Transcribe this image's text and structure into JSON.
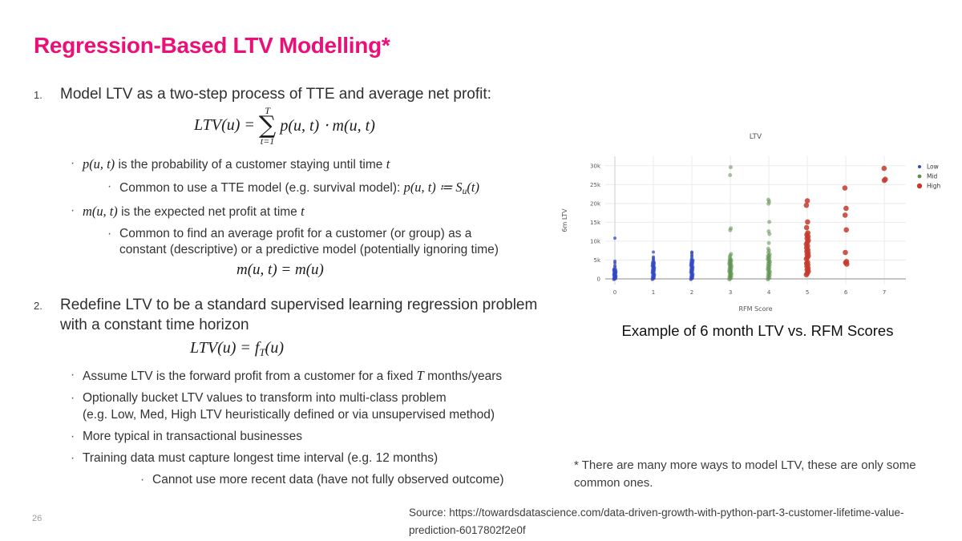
{
  "slide": {
    "title": "Regression-Based LTV Modelling*",
    "title_color": "#EA1077",
    "page_number": "26",
    "caption": "Example of 6 month LTV vs. RFM Scores",
    "footnote": "* There are many more ways to model LTV, these are only some common ones.",
    "source": "Source: https://towardsdatascience.com/data-driven-growth-with-python-part-3-customer-lifetime-value-prediction-6017802f2e0f"
  },
  "ui": {
    "bullet_char": "·"
  },
  "items": {
    "item1": {
      "number": "1.",
      "heading": "Model LTV as a two-step process of TTE and average net profit:",
      "formula_sum": {
        "lhs": "LTV(u) = ",
        "sigma": "∑",
        "upper": "T",
        "lower": "t=1",
        "rhs": "p(u, t) ⋅ m(u, t)"
      },
      "bullets": [
        {
          "segments": [
            {
              "s": "math",
              "t": "p(u, t)"
            },
            {
              "s": "text",
              "t": " is the probability of a customer staying until time "
            },
            {
              "s": "math",
              "t": "t"
            }
          ]
        },
        {
          "segments": [
            {
              "s": "text",
              "t": "Common to use a TTE model (e.g. survival model): "
            },
            {
              "s": "math",
              "t": "p(u, t) ≔ S"
            },
            {
              "s": "sub",
              "t": "u"
            },
            {
              "s": "math",
              "t": "(t)"
            }
          ]
        },
        {
          "segments": [
            {
              "s": "math",
              "t": "m(u, t)"
            },
            {
              "s": "text",
              "t": " is the expected net profit at time "
            },
            {
              "s": "math",
              "t": "t"
            }
          ]
        },
        {
          "segments": [
            {
              "s": "text",
              "t": "Common to find an average profit for a customer (or group) as a"
            },
            {
              "s": "br"
            },
            {
              "s": "text",
              "t": "constant (descriptive) or a predictive model (potentially ignoring time)"
            }
          ]
        }
      ],
      "formula_m": "m(u, t) = m(u)"
    },
    "item2": {
      "number": "2.",
      "heading_lines": [
        "Redefine LTV to be a standard supervised learning regression problem",
        "with a constant time horizon"
      ],
      "formula": {
        "lhs": "LTV(u) = f",
        "sub": "T",
        "rhs": "(u)"
      },
      "bullets": [
        {
          "segments": [
            {
              "s": "text",
              "t": "Assume LTV is the forward profit from a customer for a fixed "
            },
            {
              "s": "math",
              "t": "T"
            },
            {
              "s": "text",
              "t": " months/years"
            }
          ]
        },
        {
          "segments": [
            {
              "s": "text",
              "t": "Optionally bucket LTV values to transform into multi-class problem"
            },
            {
              "s": "br"
            },
            {
              "s": "text",
              "t": "(e.g. Low, Med, High LTV heuristically defined or via unsupervised method)"
            }
          ]
        },
        {
          "segments": [
            {
              "s": "text",
              "t": "More typical in transactional businesses"
            }
          ]
        },
        {
          "segments": [
            {
              "s": "text",
              "t": "Training data must capture longest time interval (e.g. 12 months)"
            }
          ]
        },
        {
          "segments": [
            {
              "s": "text",
              "t": "Cannot use more recent data (have not fully observed outcome)"
            }
          ]
        }
      ]
    }
  },
  "chart_data": {
    "type": "scatter",
    "title": "LTV",
    "xlabel": "RFM Score",
    "ylabel": "6m LTV",
    "x_ticks": [
      0,
      1,
      2,
      3,
      4,
      5,
      6,
      7
    ],
    "y_ticks": [
      0,
      5000,
      10000,
      15000,
      20000,
      25000,
      30000
    ],
    "y_tick_labels": [
      "0",
      "5k",
      "10k",
      "15k",
      "20k",
      "25k",
      "30k"
    ],
    "xlim": [
      -0.25,
      7.56
    ],
    "ylim": [
      -1500,
      32500
    ],
    "grid": true,
    "legend_position": "top-right",
    "series": [
      {
        "name": "Low",
        "color": "#3348C1",
        "size": 2.0,
        "opacity": 0.75,
        "jitter": 0,
        "strips": [
          {
            "x": 0,
            "y_min": -150,
            "y_max": 2600,
            "count": 26
          },
          {
            "x": 1,
            "y_min": -150,
            "y_max": 4600,
            "count": 30
          },
          {
            "x": 2,
            "y_min": -150,
            "y_max": 5100,
            "count": 32
          }
        ],
        "points": [
          [
            0,
            3100
          ],
          [
            0,
            3500
          ],
          [
            0,
            4200
          ],
          [
            0,
            4700
          ],
          [
            0,
            10800
          ],
          [
            1,
            5000
          ],
          [
            1,
            5400
          ],
          [
            1,
            5800
          ],
          [
            1,
            7100
          ],
          [
            2,
            5500
          ],
          [
            2,
            6000
          ],
          [
            2,
            6400
          ],
          [
            2,
            6900
          ],
          [
            2,
            7100
          ]
        ]
      },
      {
        "name": "Mid",
        "color": "#5E9150",
        "size": 2.5,
        "opacity": 0.55,
        "jitter": 0.8,
        "strips": [
          {
            "x": 3,
            "y_min": -150,
            "y_max": 5300,
            "count": 30
          },
          {
            "x": 4,
            "y_min": -150,
            "y_max": 6500,
            "count": 28
          }
        ],
        "points": [
          [
            3,
            5800
          ],
          [
            3,
            6200
          ],
          [
            3,
            6600
          ],
          [
            3,
            12900
          ],
          [
            3,
            13400
          ],
          [
            3,
            27500
          ],
          [
            3,
            29600
          ],
          [
            4,
            7000
          ],
          [
            4,
            7500
          ],
          [
            4,
            8000
          ],
          [
            4,
            9500
          ],
          [
            4,
            11900
          ],
          [
            4,
            12600
          ],
          [
            4,
            15100
          ],
          [
            4,
            19900
          ],
          [
            4,
            20500
          ],
          [
            4,
            21000
          ]
        ]
      },
      {
        "name": "High",
        "color": "#C53A2D",
        "size": 3.3,
        "opacity": 0.85,
        "jitter": 1.2,
        "strips": [],
        "points": [
          [
            5,
            1100
          ],
          [
            5,
            1500
          ],
          [
            5,
            2000
          ],
          [
            5,
            2400
          ],
          [
            5,
            2800
          ],
          [
            5,
            3300
          ],
          [
            5,
            3700
          ],
          [
            5,
            4100
          ],
          [
            5,
            4400
          ],
          [
            5,
            5300
          ],
          [
            5,
            5700
          ],
          [
            5,
            6100
          ],
          [
            5,
            6500
          ],
          [
            5,
            6900
          ],
          [
            5,
            7300
          ],
          [
            5,
            7700
          ],
          [
            5,
            8200
          ],
          [
            5,
            8700
          ],
          [
            5,
            9200
          ],
          [
            5,
            9700
          ],
          [
            5,
            10200
          ],
          [
            5,
            10700
          ],
          [
            5,
            11200
          ],
          [
            5,
            11700
          ],
          [
            5,
            12200
          ],
          [
            5,
            13600
          ],
          [
            5,
            15100
          ],
          [
            5,
            19500
          ],
          [
            5,
            20700
          ],
          [
            6,
            3900
          ],
          [
            6,
            4300
          ],
          [
            6,
            4600
          ],
          [
            6,
            7000
          ],
          [
            6,
            13000
          ],
          [
            6,
            16900
          ],
          [
            6,
            18700
          ],
          [
            6,
            24100
          ],
          [
            7,
            26100
          ],
          [
            7,
            26400
          ],
          [
            7,
            29300
          ]
        ]
      }
    ]
  }
}
